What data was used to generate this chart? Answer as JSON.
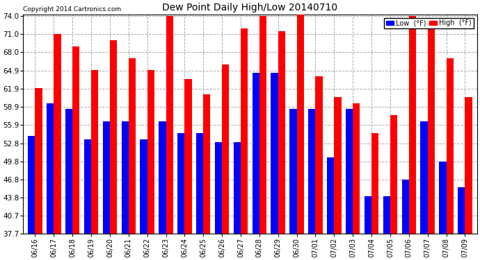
{
  "title": "Dew Point Daily High/Low 20140710",
  "copyright": "Copyright 2014 Cartronics.com",
  "dates": [
    "06/16",
    "06/17",
    "06/18",
    "06/19",
    "06/20",
    "06/21",
    "06/22",
    "06/23",
    "06/24",
    "06/25",
    "06/26",
    "06/27",
    "06/28",
    "06/29",
    "06/30",
    "07/01",
    "07/02",
    "07/03",
    "07/04",
    "07/05",
    "07/06",
    "07/07",
    "07/08",
    "07/09"
  ],
  "high": [
    62.0,
    71.0,
    69.0,
    65.0,
    70.0,
    67.0,
    65.0,
    74.0,
    63.5,
    61.0,
    66.0,
    72.0,
    74.0,
    71.5,
    74.5,
    64.0,
    60.5,
    59.5,
    54.5,
    57.5,
    74.0,
    72.5,
    67.0,
    60.5
  ],
  "low": [
    54.0,
    59.5,
    58.5,
    53.5,
    56.5,
    56.5,
    53.5,
    56.5,
    54.5,
    54.5,
    53.0,
    53.0,
    64.5,
    64.5,
    58.5,
    58.5,
    50.5,
    58.5,
    44.0,
    44.0,
    46.8,
    56.5,
    49.8,
    45.5
  ],
  "high_color": "#ff0000",
  "low_color": "#0000ff",
  "bg_color": "#ffffff",
  "grid_color": "#aaaaaa",
  "yticks": [
    37.7,
    40.7,
    43.8,
    46.8,
    49.8,
    52.8,
    55.9,
    58.9,
    61.9,
    64.9,
    68.0,
    71.0,
    74.0
  ],
  "ymin": 37.7,
  "ymax": 74.0,
  "bar_width": 0.38
}
